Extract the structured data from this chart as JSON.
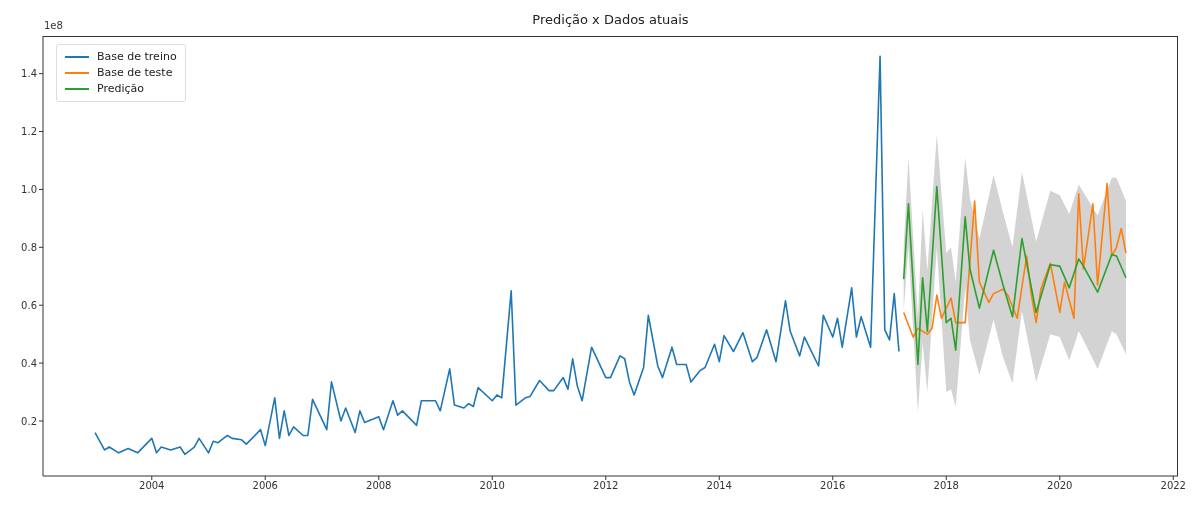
{
  "chart_data": {
    "type": "line",
    "title": "Predição x Dados atuais",
    "annotations": [
      "1e8"
    ],
    "xlim": [
      "2002-02",
      "2022-02"
    ],
    "xticks": [
      "2004",
      "2006",
      "2008",
      "2010",
      "2012",
      "2014",
      "2016",
      "2018",
      "2020",
      "2022"
    ],
    "ylim": [
      0.01,
      1.53
    ],
    "yticks": [
      0.2,
      0.4,
      0.6,
      0.8,
      {
        "value": 1,
        "label": "1.0"
      },
      1.2,
      1.4
    ],
    "grid": false,
    "legend": "top left",
    "marker": "none",
    "line_style": "solid",
    "series": [
      {
        "name": "Base de treino",
        "color": "#1f77b4",
        "x": [
          "2003-01",
          "2003-03",
          "2003-04",
          "2003-06",
          "2003-08",
          "2003-10",
          "2004-01",
          "2004-02",
          "2004-03",
          "2004-05",
          "2004-07",
          "2004-08",
          "2004-10",
          "2004-11",
          "2005-01",
          "2005-02",
          "2005-03",
          "2005-05",
          "2005-06",
          "2005-08",
          "2005-09",
          "2005-12",
          "2006-01",
          "2006-03",
          "2006-04",
          "2006-05",
          "2006-06",
          "2006-07",
          "2006-09",
          "2006-10",
          "2006-11",
          "2007-02",
          "2007-03",
          "2007-05",
          "2007-06",
          "2007-08",
          "2007-09",
          "2007-10",
          "2008-01",
          "2008-02",
          "2008-04",
          "2008-05",
          "2008-06",
          "2008-09",
          "2008-10",
          "2009-01",
          "2009-02",
          "2009-04",
          "2009-05",
          "2009-07",
          "2009-08",
          "2009-09",
          "2009-10",
          "2010-01",
          "2010-02",
          "2010-03",
          "2010-05",
          "2010-06",
          "2010-08",
          "2010-09",
          "2010-11",
          "2011-01",
          "2011-02",
          "2011-04",
          "2011-05",
          "2011-06",
          "2011-07",
          "2011-08",
          "2011-10",
          "2012-01",
          "2012-02",
          "2012-04",
          "2012-05",
          "2012-06",
          "2012-07",
          "2012-09",
          "2012-10",
          "2012-12",
          "2013-01",
          "2013-03",
          "2013-04",
          "2013-06",
          "2013-07",
          "2013-09",
          "2013-10",
          "2013-12",
          "2014-01",
          "2014-02",
          "2014-04",
          "2014-06",
          "2014-08",
          "2014-09",
          "2014-11",
          "2015-01",
          "2015-03",
          "2015-04",
          "2015-06",
          "2015-07",
          "2015-10",
          "2015-11",
          "2016-01",
          "2016-02",
          "2016-03",
          "2016-05",
          "2016-06",
          "2016-07",
          "2016-09",
          "2016-11",
          "2016-12",
          "2017-01",
          "2017-02",
          "2017-03"
        ],
        "values": [
          0.16,
          0.1,
          0.11,
          0.09,
          0.105,
          0.09,
          0.14,
          0.09,
          0.11,
          0.1,
          0.11,
          0.085,
          0.11,
          0.14,
          0.09,
          0.13,
          0.125,
          0.15,
          0.14,
          0.135,
          0.12,
          0.17,
          0.115,
          0.28,
          0.14,
          0.235,
          0.15,
          0.18,
          0.15,
          0.15,
          0.275,
          0.17,
          0.335,
          0.2,
          0.245,
          0.16,
          0.235,
          0.195,
          0.215,
          0.17,
          0.27,
          0.22,
          0.235,
          0.185,
          0.27,
          0.27,
          0.235,
          0.38,
          0.255,
          0.245,
          0.26,
          0.25,
          0.315,
          0.27,
          0.29,
          0.28,
          0.65,
          0.255,
          0.28,
          0.285,
          0.34,
          0.305,
          0.305,
          0.35,
          0.31,
          0.415,
          0.32,
          0.27,
          0.455,
          0.35,
          0.35,
          0.425,
          0.415,
          0.335,
          0.29,
          0.385,
          0.565,
          0.39,
          0.35,
          0.455,
          0.395,
          0.395,
          0.335,
          0.375,
          0.385,
          0.465,
          0.405,
          0.495,
          0.44,
          0.505,
          0.405,
          0.42,
          0.515,
          0.405,
          0.615,
          0.51,
          0.425,
          0.49,
          0.39,
          0.565,
          0.49,
          0.555,
          0.455,
          0.66,
          0.49,
          0.56,
          0.455,
          1.46,
          0.515,
          0.48,
          0.64,
          0.44
        ]
      },
      {
        "name": "Base de teste",
        "color": "#ff7f0e",
        "x": [
          "2017-04",
          "2017-06",
          "2017-07",
          "2017-09",
          "2017-10",
          "2017-11",
          "2017-12",
          "2018-02",
          "2018-03",
          "2018-05",
          "2018-07",
          "2018-08",
          "2018-10",
          "2018-11",
          "2019-01",
          "2019-02",
          "2019-04",
          "2019-06",
          "2019-07",
          "2019-08",
          "2019-09",
          "2019-11",
          "2020-01",
          "2020-02",
          "2020-04",
          "2020-05",
          "2020-06",
          "2020-08",
          "2020-09",
          "2020-11",
          "2020-12",
          "2021-01",
          "2021-02",
          "2021-03"
        ],
        "values": [
          0.575,
          0.49,
          0.52,
          0.5,
          0.52,
          0.635,
          0.555,
          0.625,
          0.54,
          0.54,
          0.96,
          0.68,
          0.61,
          0.64,
          0.655,
          0.635,
          0.555,
          0.77,
          0.635,
          0.54,
          0.655,
          0.745,
          0.575,
          0.68,
          0.555,
          0.985,
          0.725,
          0.95,
          0.67,
          1.02,
          0.77,
          0.8,
          0.865,
          0.78
        ]
      },
      {
        "name": "Predição",
        "color": "#2ca02c",
        "x": [
          "2017-04",
          "2017-05",
          "2017-07",
          "2017-08",
          "2017-09",
          "2017-11",
          "2018-01",
          "2018-02",
          "2018-03",
          "2018-05",
          "2018-06",
          "2018-08",
          "2018-11",
          "2019-01",
          "2019-03",
          "2019-05",
          "2019-08",
          "2019-11",
          "2020-01",
          "2020-03",
          "2020-05",
          "2020-06",
          "2020-09",
          "2020-12",
          "2021-01",
          "2021-03"
        ],
        "values": [
          0.69,
          0.95,
          0.395,
          0.695,
          0.51,
          1.01,
          0.54,
          0.555,
          0.445,
          0.905,
          0.725,
          0.59,
          0.79,
          0.67,
          0.56,
          0.83,
          0.575,
          0.74,
          0.735,
          0.66,
          0.76,
          0.735,
          0.645,
          0.775,
          0.77,
          0.695
        ],
        "lower": [
          0.58,
          0.8,
          0.23,
          0.47,
          0.3,
          0.8,
          0.3,
          0.31,
          0.25,
          0.66,
          0.48,
          0.36,
          0.55,
          0.42,
          0.33,
          0.58,
          0.335,
          0.5,
          0.49,
          0.41,
          0.51,
          0.48,
          0.38,
          0.51,
          0.5,
          0.43
        ],
        "upper": [
          0.8,
          1.11,
          0.56,
          0.93,
          0.72,
          1.19,
          0.78,
          0.8,
          0.68,
          1.11,
          0.97,
          0.83,
          1.05,
          0.92,
          0.8,
          1.06,
          0.82,
          0.995,
          0.98,
          0.915,
          1.017,
          0.99,
          0.91,
          1.04,
          1.04,
          0.96
        ]
      }
    ]
  }
}
